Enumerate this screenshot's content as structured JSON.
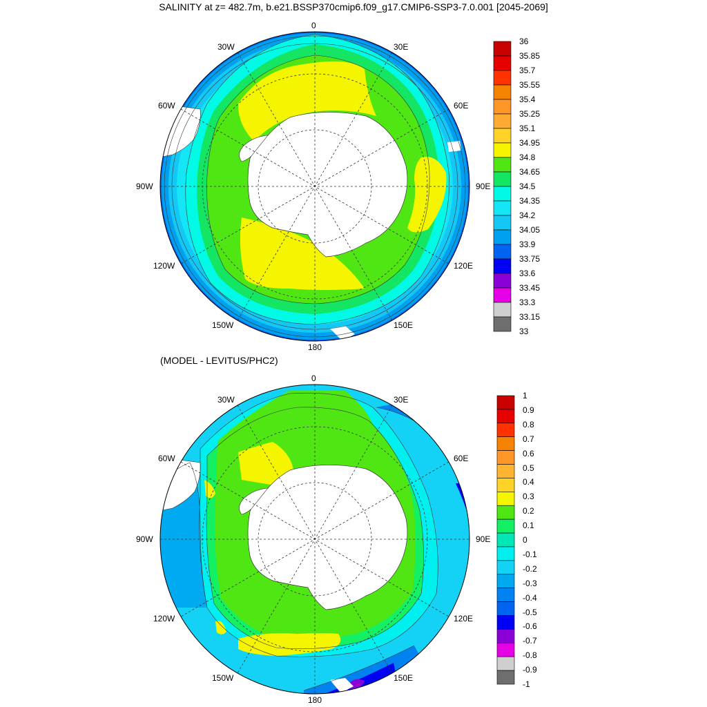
{
  "title": "SALINITY at z= 482.7m, b.e21.BSSP370cmip6.f09_g17.CMIP6-SSP3-7.0.001 [2045-2069]",
  "subtitle": "(MODEL - LEVITUS/PHC2)",
  "lon_labels": [
    "0",
    "30E",
    "60E",
    "90E",
    "120E",
    "150E",
    "180",
    "150W",
    "120W",
    "90W",
    "60W",
    "30W"
  ],
  "map1": {
    "colorbar_labels": [
      "36",
      "35.85",
      "35.7",
      "35.55",
      "35.4",
      "35.25",
      "35.1",
      "34.95",
      "34.8",
      "34.65",
      "34.5",
      "34.35",
      "34.2",
      "34.05",
      "33.9",
      "33.75",
      "33.6",
      "33.45",
      "33.3",
      "33.15",
      "33"
    ],
    "colors": [
      "#6e6e6e",
      "#cfcfcf",
      "#e600e6",
      "#8c00d8",
      "#0000f5",
      "#0064f0",
      "#00a0f0",
      "#14c8f5",
      "#14e6f5",
      "#00fae6",
      "#14e664",
      "#50e614",
      "#f5f500",
      "#ffd228",
      "#ffaa32",
      "#ff9628",
      "#f58200",
      "#ff3200",
      "#e60000",
      "#c80000"
    ]
  },
  "map2": {
    "colorbar_labels": [
      "1",
      "0.9",
      "0.8",
      "0.7",
      "0.6",
      "0.5",
      "0.4",
      "0.3",
      "0.2",
      "0.1",
      "0",
      "-0.1",
      "-0.2",
      "-0.3",
      "-0.4",
      "-0.5",
      "-0.6",
      "-0.7",
      "-0.8",
      "-0.9",
      "-1"
    ],
    "colors": [
      "#6e6e6e",
      "#cfcfcf",
      "#e600e6",
      "#8c00d8",
      "#0000f5",
      "#0064f0",
      "#0082f0",
      "#00aaf0",
      "#14d2f5",
      "#00f0f0",
      "#00e6b4",
      "#14f064",
      "#50e614",
      "#f5f500",
      "#ffd228",
      "#ffb432",
      "#ff9628",
      "#f58200",
      "#ff3200",
      "#e60000",
      "#c80000"
    ]
  },
  "legend_colors": {
    "map1": [
      "#c80000",
      "#e60000",
      "#ff3200",
      "#f58200",
      "#ff9628",
      "#ffaa32",
      "#ffd228",
      "#f5f500",
      "#50e614",
      "#14e664",
      "#00fae6",
      "#14e6f5",
      "#14c8f5",
      "#00a0f0",
      "#0064f0",
      "#0000f5",
      "#8c00d8",
      "#e600e6",
      "#cfcfcf",
      "#6e6e6e"
    ],
    "map2": [
      "#c80000",
      "#e60000",
      "#ff3200",
      "#f58200",
      "#ff9628",
      "#ffb432",
      "#ffd228",
      "#f5f500",
      "#50e614",
      "#14f064",
      "#00e6b4",
      "#00f0f0",
      "#14d2f5",
      "#00aaf0",
      "#0082f0",
      "#0064f0",
      "#0000f5",
      "#8c00d8",
      "#e600e6",
      "#cfcfcf",
      "#6e6e6e"
    ]
  }
}
